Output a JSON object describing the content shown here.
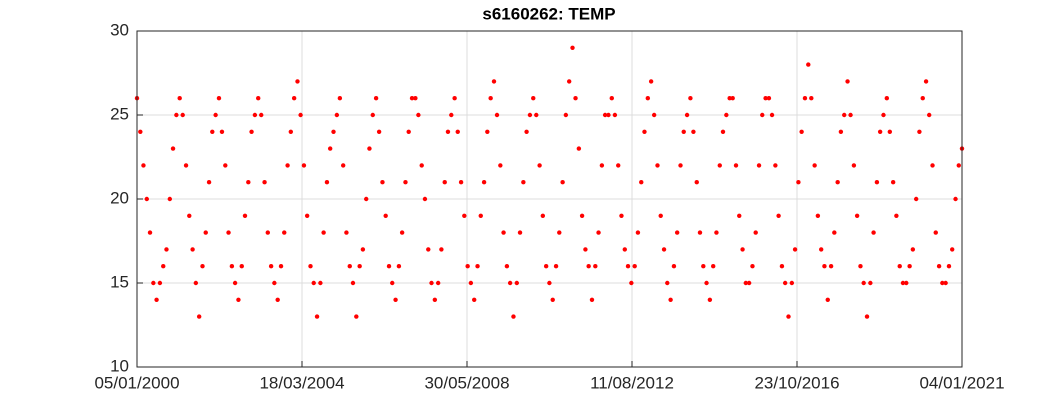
{
  "chart_data": {
    "type": "scatter",
    "title": "s6160262: TEMP",
    "color": "#ff0000",
    "grid": true,
    "xlim": [
      "05/01/2000",
      "04/01/2021"
    ],
    "xticks": [
      "05/01/2000",
      "18/03/2004",
      "30/05/2008",
      "11/08/2012",
      "23/10/2016",
      "04/01/2021"
    ],
    "ylim": [
      10,
      30
    ],
    "yticks": [
      10,
      15,
      20,
      25,
      30
    ],
    "series": [
      {
        "name": "TEMP",
        "color": "#ff0000",
        "x": [
          "05/01/2000",
          "05/02/2000",
          "05/03/2000",
          "05/04/2000",
          "05/05/2000",
          "05/06/2000",
          "05/07/2000",
          "05/08/2000",
          "05/09/2000",
          "05/10/2000",
          "05/11/2000",
          "05/12/2000",
          "05/01/2001",
          "05/02/2001",
          "05/03/2001",
          "05/04/2001",
          "05/05/2001",
          "05/06/2001",
          "05/07/2001",
          "05/08/2001",
          "05/09/2001",
          "05/10/2001",
          "05/11/2001",
          "05/12/2001",
          "05/01/2002",
          "05/02/2002",
          "05/03/2002",
          "05/04/2002",
          "05/05/2002",
          "05/06/2002",
          "05/07/2002",
          "05/08/2002",
          "05/09/2002",
          "05/10/2002",
          "05/11/2002",
          "05/12/2002",
          "05/01/2003",
          "05/02/2003",
          "05/03/2003",
          "05/04/2003",
          "05/05/2003",
          "05/06/2003",
          "05/07/2003",
          "05/08/2003",
          "05/09/2003",
          "05/10/2003",
          "05/11/2003",
          "05/12/2003",
          "05/01/2004",
          "05/02/2004",
          "05/03/2004",
          "05/04/2004",
          "05/05/2004",
          "05/06/2004",
          "05/07/2004",
          "05/08/2004",
          "05/09/2004",
          "05/10/2004",
          "05/11/2004",
          "05/12/2004",
          "05/01/2005",
          "05/02/2005",
          "05/03/2005",
          "05/04/2005",
          "05/05/2005",
          "05/06/2005",
          "05/07/2005",
          "05/08/2005",
          "05/09/2005",
          "05/10/2005",
          "05/11/2005",
          "05/12/2005",
          "05/01/2006",
          "05/02/2006",
          "05/03/2006",
          "05/04/2006",
          "05/05/2006",
          "05/06/2006",
          "05/07/2006",
          "05/08/2006",
          "05/09/2006",
          "05/10/2006",
          "05/11/2006",
          "05/12/2006",
          "05/01/2007",
          "05/02/2007",
          "05/03/2007",
          "05/04/2007",
          "05/05/2007",
          "05/06/2007",
          "05/07/2007",
          "05/08/2007",
          "05/09/2007",
          "05/10/2007",
          "05/11/2007",
          "05/12/2007",
          "05/01/2008",
          "05/02/2008",
          "05/03/2008",
          "05/04/2008",
          "05/05/2008",
          "05/06/2008",
          "05/07/2008",
          "05/08/2008",
          "05/09/2008",
          "05/10/2008",
          "05/11/2008",
          "05/12/2008",
          "05/01/2009",
          "05/02/2009",
          "05/03/2009",
          "05/04/2009",
          "05/05/2009",
          "05/06/2009",
          "05/07/2009",
          "05/08/2009",
          "05/09/2009",
          "05/10/2009",
          "05/11/2009",
          "05/12/2009",
          "05/01/2010",
          "05/02/2010",
          "05/03/2010",
          "05/04/2010",
          "05/05/2010",
          "05/06/2010",
          "05/07/2010",
          "05/08/2010",
          "05/09/2010",
          "05/10/2010",
          "05/11/2010",
          "05/12/2010",
          "05/01/2011",
          "05/02/2011",
          "05/03/2011",
          "05/04/2011",
          "05/05/2011",
          "05/06/2011",
          "05/07/2011",
          "05/08/2011",
          "05/09/2011",
          "05/10/2011",
          "05/11/2011",
          "05/12/2011",
          "05/01/2012",
          "05/02/2012",
          "05/03/2012",
          "05/04/2012",
          "05/05/2012",
          "05/06/2012",
          "05/07/2012",
          "05/08/2012",
          "05/09/2012",
          "05/10/2012",
          "05/11/2012",
          "05/12/2012",
          "05/01/2013",
          "05/02/2013",
          "05/03/2013",
          "05/04/2013",
          "05/05/2013",
          "05/06/2013",
          "05/07/2013",
          "05/08/2013",
          "05/09/2013",
          "05/10/2013",
          "05/11/2013",
          "05/12/2013",
          "05/01/2014",
          "05/02/2014",
          "05/03/2014",
          "05/04/2014",
          "05/05/2014",
          "05/06/2014",
          "05/07/2014",
          "05/08/2014",
          "05/09/2014",
          "05/10/2014",
          "05/11/2014",
          "05/12/2014",
          "05/01/2015",
          "05/02/2015",
          "05/03/2015",
          "05/04/2015",
          "05/05/2015",
          "05/06/2015",
          "05/07/2015",
          "05/08/2015",
          "05/09/2015",
          "05/10/2015",
          "05/11/2015",
          "05/12/2015",
          "05/01/2016",
          "05/02/2016",
          "05/03/2016",
          "05/04/2016",
          "05/05/2016",
          "05/06/2016",
          "05/07/2016",
          "05/08/2016",
          "05/09/2016",
          "05/10/2016",
          "05/11/2016",
          "05/12/2016",
          "05/01/2017",
          "05/02/2017",
          "05/03/2017",
          "05/04/2017",
          "05/05/2017",
          "05/06/2017",
          "05/07/2017",
          "05/08/2017",
          "05/09/2017",
          "05/10/2017",
          "05/11/2017",
          "05/12/2017",
          "05/01/2018",
          "05/02/2018",
          "05/03/2018",
          "05/04/2018",
          "05/05/2018",
          "05/06/2018",
          "05/07/2018",
          "05/08/2018",
          "05/09/2018",
          "05/10/2018",
          "05/11/2018",
          "05/12/2018",
          "05/01/2019",
          "05/02/2019",
          "05/03/2019",
          "05/04/2019",
          "05/05/2019",
          "05/06/2019",
          "05/07/2019",
          "05/08/2019",
          "05/09/2019",
          "05/10/2019",
          "05/11/2019",
          "05/12/2019",
          "05/01/2020",
          "05/02/2020",
          "05/03/2020",
          "05/04/2020",
          "05/05/2020",
          "05/06/2020",
          "05/07/2020",
          "05/08/2020",
          "05/09/2020",
          "05/10/2020",
          "05/11/2020",
          "05/12/2020",
          "04/01/2021"
        ],
        "values": [
          26,
          24,
          22,
          20,
          18,
          15,
          14,
          15,
          16,
          17,
          20,
          23,
          25,
          26,
          25,
          22,
          19,
          17,
          15,
          13,
          16,
          18,
          21,
          24,
          25,
          26,
          24,
          22,
          18,
          16,
          15,
          14,
          16,
          19,
          21,
          24,
          25,
          26,
          25,
          21,
          18,
          16,
          15,
          14,
          16,
          18,
          22,
          24,
          26,
          27,
          25,
          22,
          19,
          16,
          15,
          13,
          15,
          18,
          21,
          23,
          24,
          25,
          26,
          22,
          18,
          16,
          15,
          13,
          16,
          17,
          20,
          23,
          25,
          26,
          24,
          21,
          19,
          16,
          15,
          14,
          16,
          18,
          21,
          24,
          26,
          26,
          25,
          22,
          20,
          17,
          15,
          14,
          15,
          17,
          21,
          24,
          25,
          26,
          24,
          21,
          19,
          16,
          15,
          14,
          16,
          19,
          21,
          24,
          26,
          27,
          25,
          22,
          18,
          16,
          15,
          13,
          15,
          18,
          21,
          24,
          25,
          26,
          25,
          22,
          19,
          16,
          15,
          14,
          16,
          18,
          21,
          25,
          27,
          29,
          26,
          23,
          19,
          17,
          16,
          14,
          16,
          18,
          22,
          25,
          25,
          26,
          25,
          22,
          19,
          17,
          16,
          15,
          16,
          18,
          21,
          24,
          26,
          27,
          25,
          22,
          19,
          17,
          15,
          14,
          16,
          18,
          22,
          24,
          25,
          26,
          24,
          21,
          18,
          16,
          15,
          14,
          16,
          18,
          22,
          24,
          25,
          26,
          26,
          22,
          19,
          17,
          15,
          15,
          16,
          18,
          22,
          25,
          26,
          26,
          25,
          22,
          19,
          16,
          15,
          13,
          15,
          17,
          21,
          24,
          26,
          28,
          26,
          22,
          19,
          17,
          16,
          14,
          16,
          18,
          21,
          24,
          25,
          27,
          25,
          22,
          19,
          16,
          15,
          13,
          15,
          18,
          21,
          24,
          25,
          26,
          24,
          21,
          19,
          16,
          15,
          15,
          16,
          17,
          20,
          24,
          26,
          27,
          25,
          22,
          18,
          16,
          15,
          15,
          16,
          17,
          20,
          22,
          23
        ]
      }
    ]
  }
}
